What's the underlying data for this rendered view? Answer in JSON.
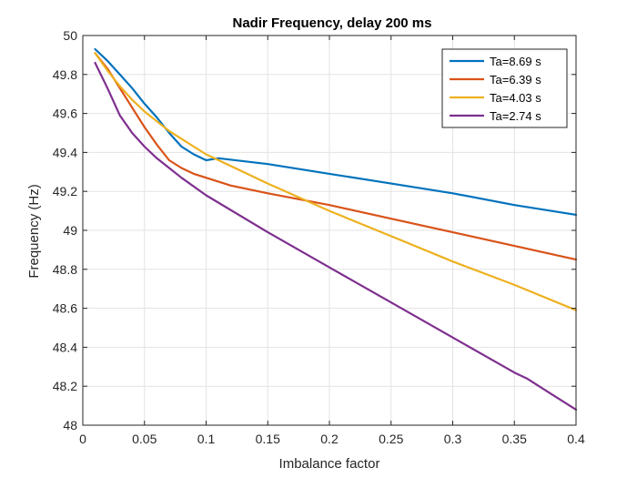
{
  "chart_data": {
    "type": "line",
    "title": "Nadir Frequency, delay 200 ms",
    "xlabel": "Imbalance factor",
    "ylabel": "Frequency (Hz)",
    "xlim": [
      0,
      0.4
    ],
    "ylim": [
      48,
      50
    ],
    "xticks": [
      0,
      0.05,
      0.1,
      0.15,
      0.2,
      0.25,
      0.3,
      0.35,
      0.4
    ],
    "xtick_labels": [
      "0",
      "0.05",
      "0.1",
      "0.15",
      "0.2",
      "0.25",
      "0.3",
      "0.35",
      "0.4"
    ],
    "yticks": [
      48,
      48.2,
      48.4,
      48.6,
      48.8,
      49,
      49.2,
      49.4,
      49.6,
      49.8,
      50
    ],
    "ytick_labels": [
      "48",
      "48.2",
      "48.4",
      "48.6",
      "48.8",
      "49",
      "49.2",
      "49.4",
      "49.6",
      "49.8",
      "50"
    ],
    "grid": true,
    "legend_position": "top-right",
    "series": [
      {
        "name": "Ta=8.69 s",
        "color": "#0072BD",
        "x": [
          0.01,
          0.02,
          0.03,
          0.04,
          0.05,
          0.06,
          0.07,
          0.08,
          0.09,
          0.1,
          0.11,
          0.15,
          0.2,
          0.25,
          0.3,
          0.35,
          0.4
        ],
        "y": [
          49.93,
          49.87,
          49.8,
          49.73,
          49.65,
          49.58,
          49.5,
          49.43,
          49.39,
          49.36,
          49.37,
          49.34,
          49.29,
          49.24,
          49.19,
          49.13,
          49.08
        ]
      },
      {
        "name": "Ta=6.39 s",
        "color": "#D95319",
        "x": [
          0.01,
          0.02,
          0.03,
          0.04,
          0.05,
          0.06,
          0.07,
          0.08,
          0.09,
          0.1,
          0.12,
          0.15,
          0.2,
          0.25,
          0.3,
          0.35,
          0.4
        ],
        "y": [
          49.91,
          49.83,
          49.73,
          49.63,
          49.53,
          49.44,
          49.36,
          49.32,
          49.29,
          49.27,
          49.23,
          49.19,
          49.13,
          49.06,
          48.99,
          48.92,
          48.85
        ]
      },
      {
        "name": "Ta=4.03 s",
        "color": "#EDB120",
        "x": [
          0.01,
          0.02,
          0.03,
          0.04,
          0.05,
          0.06,
          0.07,
          0.08,
          0.09,
          0.1,
          0.15,
          0.2,
          0.25,
          0.3,
          0.35,
          0.4
        ],
        "y": [
          49.91,
          49.82,
          49.74,
          49.67,
          49.61,
          49.56,
          49.51,
          49.47,
          49.43,
          49.39,
          49.24,
          49.1,
          48.97,
          48.84,
          48.72,
          48.59
        ]
      },
      {
        "name": "Ta=2.74 s",
        "color": "#7E2F8E",
        "x": [
          0.01,
          0.02,
          0.03,
          0.04,
          0.05,
          0.06,
          0.07,
          0.08,
          0.1,
          0.15,
          0.2,
          0.25,
          0.3,
          0.35,
          0.36,
          0.38,
          0.4
        ],
        "y": [
          49.86,
          49.73,
          49.59,
          49.5,
          49.43,
          49.37,
          49.32,
          49.27,
          49.18,
          48.99,
          48.81,
          48.63,
          48.45,
          48.27,
          48.24,
          48.16,
          48.08
        ]
      }
    ]
  }
}
